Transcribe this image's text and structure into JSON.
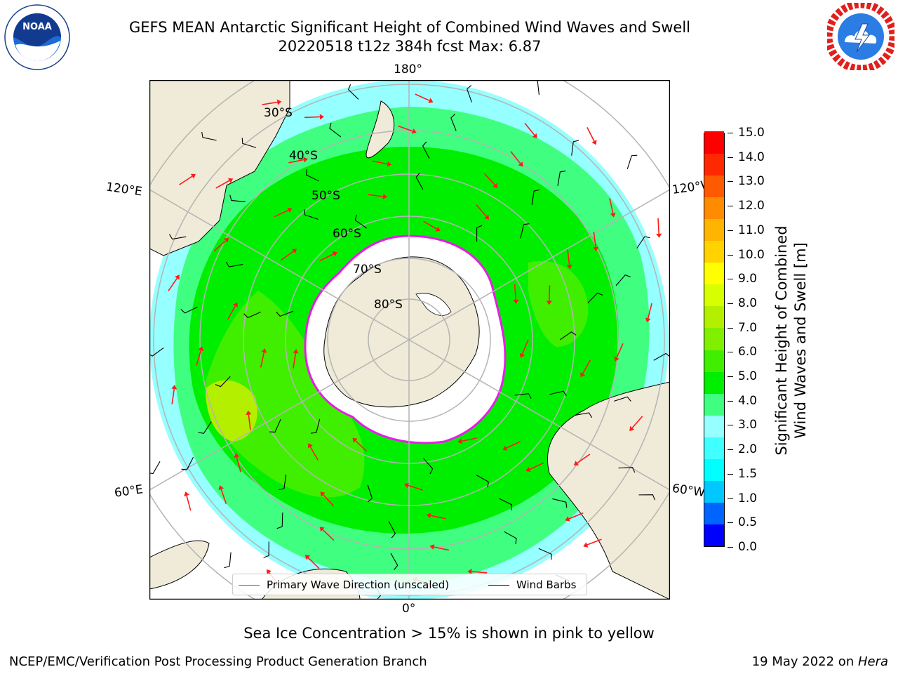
{
  "title_line1": "GEFS MEAN Antarctic Significant Height of Combined Wind Waves and Swell",
  "title_line2": "20220518 t12z 384h fcst   Max: 6.87",
  "logos": {
    "left": {
      "name": "NOAA",
      "text": "NOAA",
      "ring_text": "NATIONAL OCEANIC AND ATMOSPHERIC ADMINISTRATION · U.S. DEPARTMENT OF COMMERCE"
    },
    "right": {
      "name": "National Weather Service",
      "ring_text": "NATIONAL WEATHER SERVICE"
    }
  },
  "map": {
    "projection": "south-polar-stereographic",
    "longitude_labels": [
      "180°",
      "120°E",
      "120°W",
      "60°E",
      "60°W",
      "0°"
    ],
    "latitude_labels": [
      "30°S",
      "40°S",
      "50°S",
      "60°S",
      "70°S",
      "80°S"
    ],
    "colors": {
      "land": "#efebd8",
      "sea_ice": "#ffffff",
      "ice_edge": "#e61ee6",
      "wave_arrow": "#ff1a1a",
      "wind_barb": "#000000",
      "grid": "#b4b4b4"
    }
  },
  "legend": {
    "primary_wave": "Primary Wave Direction (unscaled)",
    "wind_barbs": "Wind Barbs"
  },
  "colorbar": {
    "title_line1": "Significant Height of Combined",
    "title_line2": "Wind Waves and Swell [m]",
    "ticks": [
      "0.0",
      "0.5",
      "1.0",
      "1.5",
      "2.0",
      "3.0",
      "4.0",
      "5.0",
      "6.0",
      "7.0",
      "8.0",
      "9.0",
      "10.0",
      "11.0",
      "12.0",
      "13.0",
      "14.0",
      "15.0"
    ],
    "bins": [
      "#0000ff",
      "#0064ff",
      "#00c8ff",
      "#00ffff",
      "#40ffff",
      "#96ffff",
      "#40ff80",
      "#00ef00",
      "#40ef00",
      "#80ef00",
      "#b4ef00",
      "#d8ff00",
      "#ffff00",
      "#ffd200",
      "#ffb400",
      "#ff8c00",
      "#ff5a00",
      "#ff2800",
      "#ff0000"
    ]
  },
  "subtitle": "Sea Ice Concentration > 15% is shown in pink to yellow",
  "footer": {
    "left": "NCEP/EMC/Verification Post Processing Product Generation Branch",
    "right_prefix": "19 May 2022 on ",
    "right_host": "Hera"
  }
}
